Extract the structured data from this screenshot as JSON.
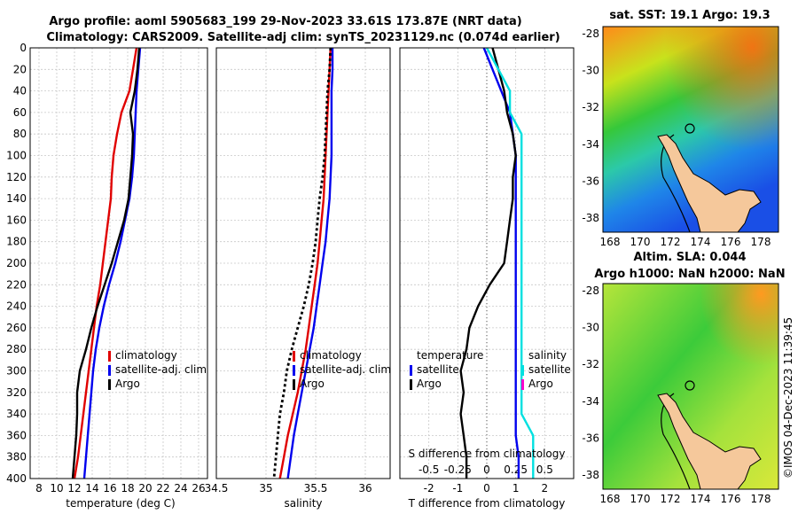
{
  "header": {
    "line1": "Argo profile: aoml 5905683_199 29-Nov-2023 33.61S 173.87E (NRT data)",
    "line2": "Climatology: CARS2009. Satellite-adj clim: synTS_20231129.nc (0.074d earlier)"
  },
  "maps": {
    "sst_title": "sat. SST: 19.1 Argo: 19.3",
    "sla_title1": "Altim. SLA: 0.044",
    "sla_title2": "Argo h1000: NaN h2000: NaN",
    "lat_ticks": [
      "-28",
      "-30",
      "-32",
      "-34",
      "-36",
      "-38"
    ],
    "lon_ticks": [
      "168",
      "170",
      "172",
      "174",
      "176",
      "178"
    ]
  },
  "credit": "©IMOS 04-Dec-2023 11:39:45",
  "colors": {
    "climatology": "#e00000",
    "satellite": "#0000ee",
    "argo": "#000000",
    "sal_satellite": "#00e0e0",
    "sal_argo": "#ff00cc",
    "land": "#f5c89b"
  },
  "chart_data": [
    {
      "type": "line",
      "name": "temperature",
      "xlabel": "temperature (deg C)",
      "ylabel": "",
      "xlim": [
        7,
        27
      ],
      "ylim": [
        400,
        0
      ],
      "xticks": [
        "8",
        "10",
        "12",
        "14",
        "16",
        "18",
        "20",
        "22",
        "24",
        "26"
      ],
      "yticks": [
        "0",
        "20",
        "40",
        "60",
        "80",
        "100",
        "120",
        "140",
        "160",
        "180",
        "200",
        "220",
        "240",
        "260",
        "280",
        "300",
        "320",
        "340",
        "360",
        "380",
        "400"
      ],
      "legend": [
        "climatology",
        "satellite-adj. clim",
        "Argo"
      ],
      "series": [
        {
          "name": "climatology",
          "x": [
            19.0,
            18.6,
            18.2,
            17.3,
            16.8,
            16.4,
            16.2,
            16.1,
            15.8,
            15.5,
            15.2,
            14.9,
            14.5,
            14.2,
            13.9,
            13.6,
            13.3,
            13.0,
            12.7,
            12.4,
            12.0
          ],
          "y": [
            0,
            20,
            40,
            60,
            80,
            100,
            120,
            140,
            160,
            180,
            200,
            220,
            240,
            260,
            280,
            300,
            320,
            340,
            360,
            380,
            400
          ]
        },
        {
          "name": "satellite-adj. clim",
          "x": [
            19.4,
            19.2,
            19.0,
            18.9,
            18.8,
            18.7,
            18.5,
            18.2,
            17.7,
            17.2,
            16.6,
            15.9,
            15.3,
            14.8,
            14.4,
            14.1,
            13.9,
            13.7,
            13.5,
            13.3,
            13.1
          ],
          "y": [
            0,
            20,
            40,
            60,
            80,
            100,
            120,
            140,
            160,
            180,
            200,
            220,
            240,
            260,
            280,
            300,
            320,
            340,
            360,
            380,
            400
          ]
        },
        {
          "name": "Argo",
          "x": [
            19.3,
            19.1,
            18.8,
            18.3,
            18.6,
            18.5,
            18.3,
            18.1,
            17.6,
            16.9,
            16.2,
            15.4,
            14.6,
            13.9,
            13.3,
            12.6,
            12.3,
            12.3,
            12.2,
            12.0,
            11.8
          ],
          "y": [
            0,
            20,
            40,
            60,
            80,
            100,
            120,
            140,
            160,
            180,
            200,
            220,
            240,
            260,
            280,
            300,
            320,
            340,
            360,
            380,
            400
          ]
        }
      ]
    },
    {
      "type": "line",
      "name": "salinity",
      "xlabel": "salinity",
      "xlim": [
        34.5,
        36.25
      ],
      "ylim": [
        400,
        0
      ],
      "xticks": [
        "34.5",
        "35",
        "35.5",
        "36"
      ],
      "legend": [
        "climatology",
        "satellite-adj. clim",
        "Argo"
      ],
      "series": [
        {
          "name": "climatology",
          "x": [
            35.65,
            35.64,
            35.63,
            35.62,
            35.61,
            35.6,
            35.59,
            35.58,
            35.56,
            35.54,
            35.52,
            35.49,
            35.46,
            35.43,
            35.4,
            35.36,
            35.32,
            35.27,
            35.22,
            35.18,
            35.14
          ],
          "y": [
            0,
            20,
            40,
            60,
            80,
            100,
            120,
            140,
            160,
            180,
            200,
            220,
            240,
            260,
            280,
            300,
            320,
            340,
            360,
            380,
            400
          ]
        },
        {
          "name": "satellite-adj. clim",
          "x": [
            35.67,
            35.67,
            35.66,
            35.66,
            35.66,
            35.66,
            35.65,
            35.64,
            35.62,
            35.6,
            35.57,
            35.54,
            35.51,
            35.48,
            35.44,
            35.4,
            35.36,
            35.32,
            35.28,
            35.25,
            35.22
          ],
          "y": [
            0,
            20,
            40,
            60,
            80,
            100,
            120,
            140,
            160,
            180,
            200,
            220,
            240,
            260,
            280,
            300,
            320,
            340,
            360,
            380,
            400
          ]
        },
        {
          "name": "Argo",
          "x": [
            35.65,
            35.64,
            35.62,
            35.61,
            35.6,
            35.59,
            35.57,
            35.54,
            35.52,
            35.5,
            35.47,
            35.43,
            35.38,
            35.32,
            35.26,
            35.21,
            35.18,
            35.14,
            35.12,
            35.1,
            35.08
          ],
          "y": [
            0,
            20,
            40,
            60,
            80,
            100,
            120,
            140,
            160,
            180,
            200,
            220,
            240,
            260,
            280,
            300,
            320,
            340,
            360,
            380,
            400
          ]
        }
      ]
    },
    {
      "type": "line",
      "name": "difference from climatology",
      "xlabel": "T difference from climatology",
      "xlabel2": "S difference from climatology",
      "xlim": [
        -3,
        3
      ],
      "ylim": [
        400,
        0
      ],
      "xticks": [
        "-2",
        "-1",
        "0",
        "1",
        "2"
      ],
      "xticks2": [
        "-0.5",
        "-0.25",
        "0",
        "0.25",
        "0.5"
      ],
      "legend_temperature_title": "temperature",
      "legend_salinity_title": "salinity",
      "legend_temperature": [
        "satellite",
        "Argo"
      ],
      "legend_salinity": [
        "satellite",
        "Argo"
      ],
      "series": [
        {
          "name": "temperature satellite",
          "x": [
            -0.1,
            0.2,
            0.5,
            0.8,
            0.9,
            1.0,
            1.0,
            1.0,
            1.0,
            1.0,
            1.0,
            1.0,
            1.0,
            1.0,
            1.0,
            1.0,
            1.0,
            1.0,
            1.0,
            1.1,
            1.1
          ],
          "y": [
            0,
            20,
            40,
            60,
            80,
            100,
            120,
            140,
            160,
            180,
            200,
            220,
            240,
            260,
            280,
            300,
            320,
            340,
            360,
            380,
            400
          ]
        },
        {
          "name": "temperature Argo",
          "x": [
            0.2,
            0.4,
            0.6,
            0.7,
            0.9,
            1.0,
            0.9,
            0.9,
            0.8,
            0.7,
            0.6,
            0.1,
            -0.3,
            -0.6,
            -0.7,
            -0.9,
            -0.8,
            -0.9,
            -0.8,
            -0.7,
            -0.7
          ],
          "y": [
            0,
            20,
            40,
            60,
            80,
            100,
            120,
            140,
            160,
            180,
            200,
            220,
            240,
            260,
            280,
            300,
            320,
            340,
            360,
            380,
            400
          ]
        },
        {
          "name": "salinity satellite",
          "x": [
            0.0,
            0.1,
            0.2,
            0.2,
            0.3,
            0.3,
            0.3,
            0.3,
            0.3,
            0.3,
            0.3,
            0.3,
            0.3,
            0.3,
            0.3,
            0.3,
            0.3,
            0.3,
            0.4,
            0.4,
            0.4
          ],
          "y": [
            0,
            20,
            40,
            60,
            80,
            100,
            120,
            140,
            160,
            180,
            200,
            220,
            240,
            260,
            280,
            300,
            320,
            340,
            360,
            380,
            400
          ]
        }
      ]
    }
  ]
}
